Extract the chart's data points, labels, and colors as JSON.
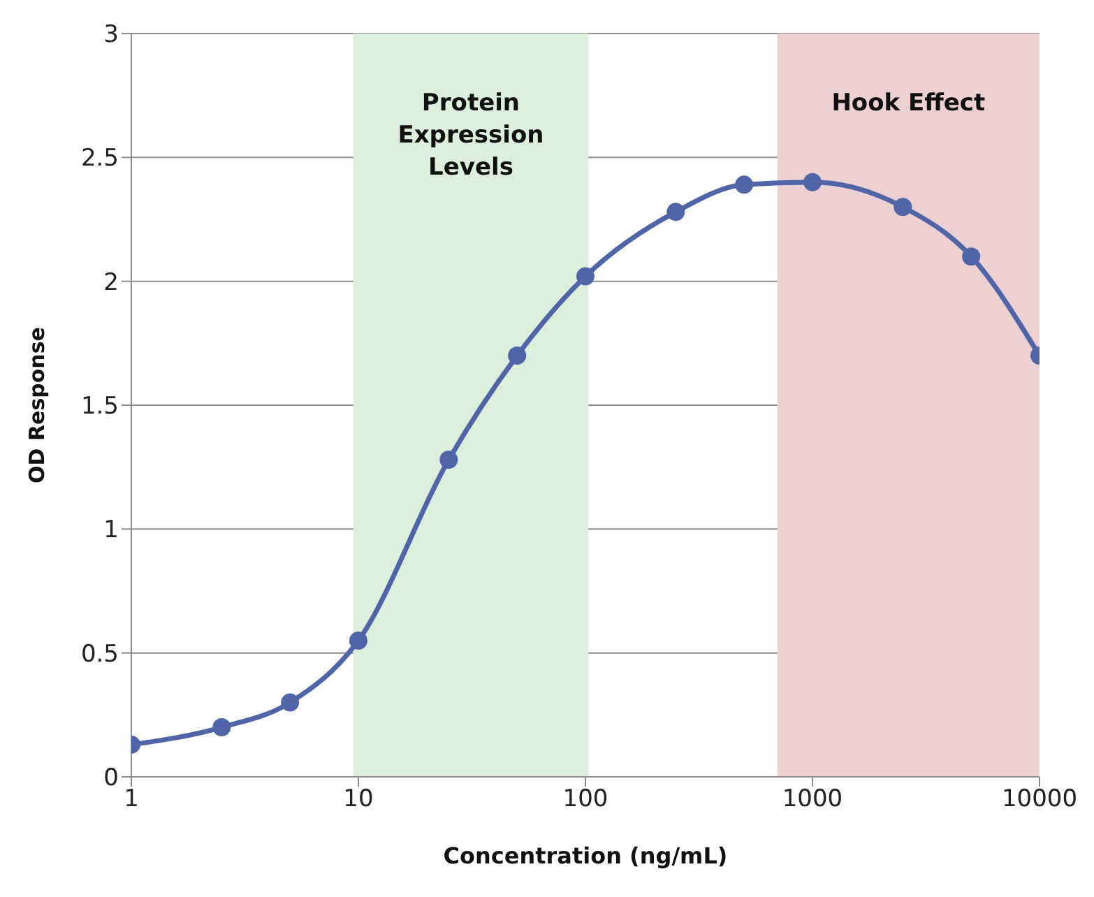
{
  "chart_data": {
    "type": "line",
    "xlabel": "Concentration (ng/mL)",
    "ylabel": "OD Response",
    "x": [
      1,
      2.5,
      5,
      10,
      25,
      50,
      100,
      250,
      500,
      1000,
      2500,
      5000,
      10000
    ],
    "series": [
      {
        "color": "#4f65a8",
        "values": [
          0.13,
          0.2,
          0.3,
          0.55,
          1.28,
          1.7,
          2.02,
          2.28,
          2.39,
          2.4,
          2.3,
          2.1,
          1.7
        ]
      }
    ],
    "xlim": [
      1,
      10000
    ],
    "xticks": [
      1,
      10,
      100,
      1000,
      10000
    ],
    "ylim": [
      0,
      3
    ],
    "yticks": [
      0,
      0.5,
      1,
      1.5,
      2,
      2.5,
      3
    ],
    "log": "x",
    "grid": "y",
    "legend": false,
    "marker": "circle",
    "line_style": "solid",
    "bands": [
      {
        "axis": "x",
        "from": 9.5,
        "to": 103,
        "label": "Protein\nExpression\nLevels",
        "color": "#dcefdd"
      },
      {
        "axis": "x",
        "from": 700,
        "to": 10000,
        "label": "Hook Effect",
        "color": "#edd0d2"
      }
    ]
  }
}
